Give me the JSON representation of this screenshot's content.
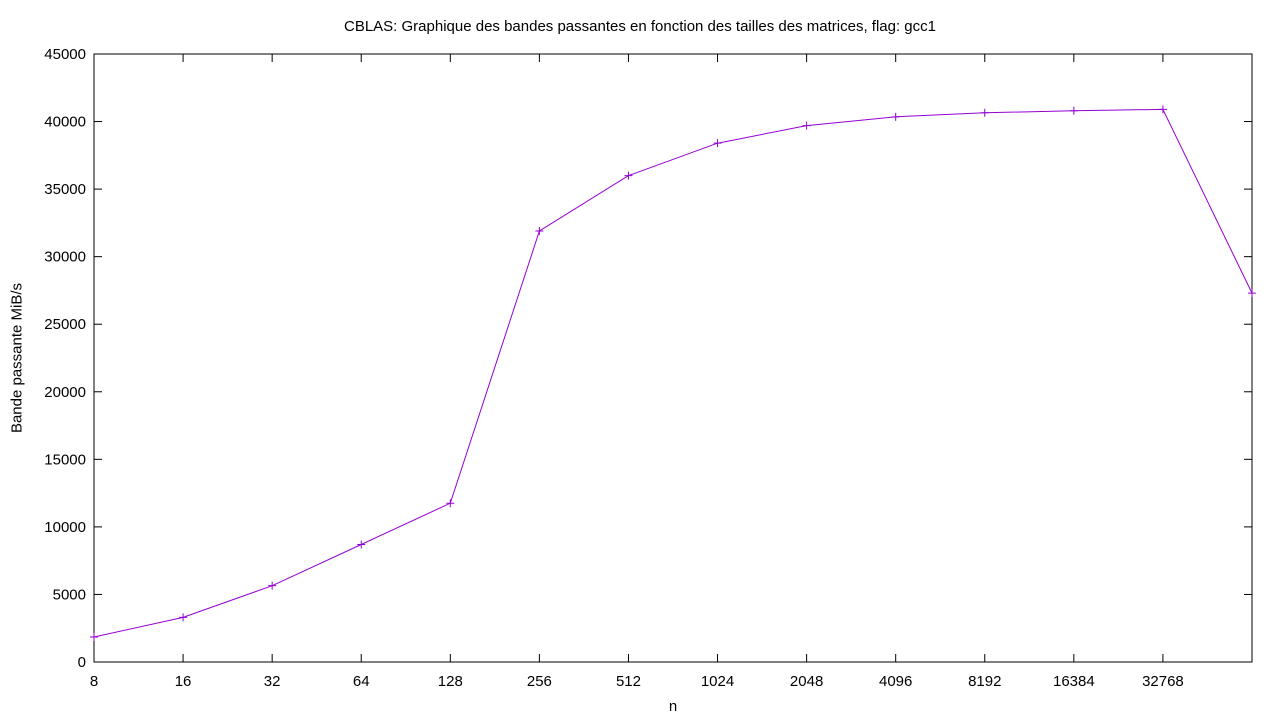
{
  "chart_data": {
    "type": "line",
    "title": "CBLAS: Graphique des bandes passantes en fonction des tailles des matrices, flag: gcc1",
    "xlabel": "n",
    "ylabel": "Bande passante MiB/s",
    "x_scale": "log2",
    "x_tick_labels": [
      "8",
      "16",
      "32",
      "64",
      "128",
      "256",
      "512",
      "1024",
      "2048",
      "4096",
      "8192",
      "16384",
      "32768"
    ],
    "y_ticks": [
      0,
      5000,
      10000,
      15000,
      20000,
      25000,
      30000,
      35000,
      40000,
      45000
    ],
    "ylim": [
      0,
      45000
    ],
    "grid": false,
    "legend": "none",
    "series": [
      {
        "color": "#9400d3",
        "x": [
          8,
          16,
          32,
          64,
          128,
          256,
          512,
          1024,
          2048,
          4096,
          8192,
          16384,
          32768,
          65536
        ],
        "values": [
          1850,
          3300,
          5650,
          8700,
          11750,
          31900,
          36000,
          38400,
          39700,
          40350,
          40650,
          40800,
          40900,
          27300
        ]
      }
    ]
  }
}
